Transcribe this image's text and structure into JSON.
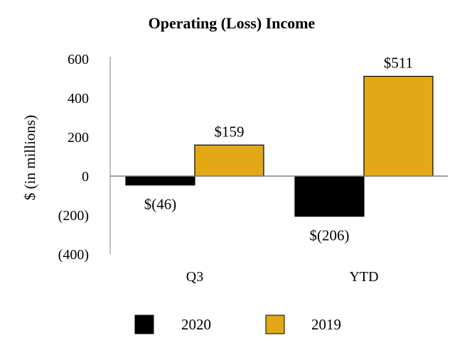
{
  "chart_data": {
    "type": "bar",
    "title": "Operating (Loss) Income",
    "ylabel": "$ (in millions)",
    "xlabel": "",
    "categories": [
      "Q3",
      "YTD"
    ],
    "series": [
      {
        "name": "2020",
        "values": [
          -46,
          -206
        ],
        "labels": [
          "$(46)",
          "$(206)"
        ],
        "color": "#000000"
      },
      {
        "name": "2019",
        "values": [
          159,
          511
        ],
        "labels": [
          "$159",
          "$511"
        ],
        "color": "#E3A815"
      }
    ],
    "ylim": [
      -400,
      600
    ],
    "yticks": [
      600,
      400,
      200,
      0,
      -200,
      -400
    ],
    "ytick_labels": [
      "600",
      "400",
      "200",
      "0",
      "(200)",
      "(400)"
    ],
    "legend_position": "bottom",
    "grid": false
  }
}
